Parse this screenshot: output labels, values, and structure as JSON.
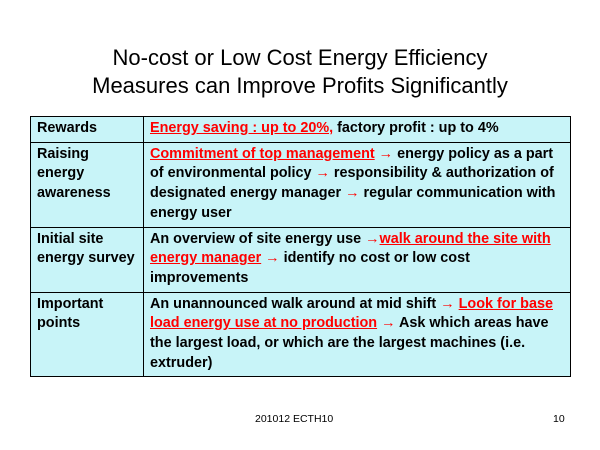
{
  "title": {
    "line1": "No-cost or Low Cost Energy Efficiency",
    "line2": "Measures can Improve Profits Significantly"
  },
  "rows": [
    {
      "label": "Rewards",
      "segments": [
        {
          "text": "Energy saving : up to 20%,",
          "emphasis": true
        },
        {
          "text": " factory profit : up to 4%",
          "emphasis": false
        }
      ]
    },
    {
      "label": "Raising energy awareness",
      "segments": [
        {
          "text": "Commitment of top management",
          "emphasis": true
        },
        {
          "text": " → ",
          "arrow": true
        },
        {
          "text": "energy policy as a part of environmental policy",
          "emphasis": false
        },
        {
          "text": " → ",
          "arrow": true
        },
        {
          "text": "responsibility & authorization of designated energy manager",
          "emphasis": false
        },
        {
          "text": " → ",
          "arrow": true
        },
        {
          "text": "regular communication with energy user",
          "emphasis": false
        }
      ]
    },
    {
      "label": "Initial site energy survey",
      "segments": [
        {
          "text": "An overview of site energy use ",
          "emphasis": false
        },
        {
          "text": "→",
          "arrow": true
        },
        {
          "text": "walk around the site with energy manager",
          "emphasis": true
        },
        {
          "text": " → ",
          "arrow": true
        },
        {
          "text": "identify no cost or low cost improvements",
          "emphasis": false
        }
      ]
    },
    {
      "label": "Important points",
      "segments": [
        {
          "text": "An unannounced walk around at mid shift ",
          "emphasis": false
        },
        {
          "text": "→",
          "arrow": true
        },
        {
          "text": " ",
          "emphasis": false
        },
        {
          "text": "Look for base load energy use at no production",
          "emphasis": true
        },
        {
          "text": " → ",
          "arrow": true
        },
        {
          "text": "Ask which areas have the largest load, or which are the largest machines (i.e. extruder)",
          "emphasis": false
        }
      ]
    }
  ],
  "footer": {
    "text": "201012 ECTH10",
    "page": "10"
  },
  "colors": {
    "cell_background": "#c8f4f8",
    "emphasis": "#ff0000",
    "border": "#000000"
  }
}
